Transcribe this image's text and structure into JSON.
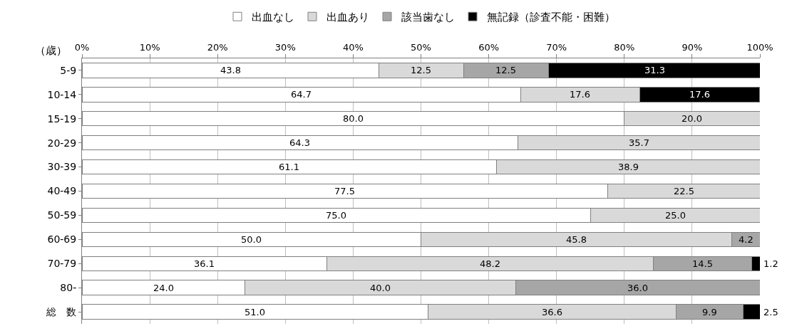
{
  "chart_data": {
    "type": "bar",
    "orientation": "horizontal",
    "stacked": true,
    "grid": "x",
    "legend": "top",
    "ylabel": "（歳）",
    "categories": [
      "5-9",
      "10-14",
      "15-19",
      "20-29",
      "30-39",
      "40-49",
      "50-59",
      "60-69",
      "70-79",
      "80-",
      "総　数"
    ],
    "series": [
      {
        "name": "出血なし",
        "color": "#ffffff",
        "values": [
          43.8,
          64.7,
          80.0,
          64.3,
          61.1,
          77.5,
          75.0,
          50.0,
          36.1,
          24.0,
          51.0
        ],
        "value_labels": [
          "43.8",
          "64.7",
          "80.0",
          "64.3",
          "61.1",
          "77.5",
          "75.0",
          "50.0",
          "36.1",
          "24.0",
          "51.0"
        ]
      },
      {
        "name": "出血あり",
        "color": "#d9d9d9",
        "values": [
          12.5,
          17.6,
          20.0,
          35.7,
          38.9,
          22.5,
          25.0,
          45.8,
          48.2,
          40.0,
          36.6
        ],
        "value_labels": [
          "12.5",
          "17.6",
          "20.0",
          "35.7",
          "38.9",
          "22.5",
          "25.0",
          "45.8",
          "48.2",
          "40.0",
          "36.6"
        ]
      },
      {
        "name": "該当歯なし",
        "color": "#a6a6a6",
        "values": [
          12.5,
          null,
          null,
          null,
          null,
          null,
          null,
          4.2,
          14.5,
          36.0,
          9.9
        ],
        "value_labels": [
          "12.5",
          null,
          null,
          null,
          null,
          null,
          null,
          "4.2",
          "14.5",
          "36.0",
          "9.9"
        ]
      },
      {
        "name": "無記録（診査不能・困難）",
        "color": "#000000",
        "values": [
          31.3,
          17.6,
          null,
          null,
          null,
          null,
          null,
          null,
          1.2,
          null,
          2.5
        ],
        "value_labels": [
          "31.3",
          "17.6",
          null,
          null,
          null,
          null,
          null,
          null,
          "1.2",
          null,
          "2.5"
        ]
      }
    ],
    "xlim": [
      0,
      100
    ],
    "xticks": [
      {
        "value": 0,
        "label": "0%"
      },
      {
        "value": 10,
        "label": "10%"
      },
      {
        "value": 20,
        "label": "20%"
      },
      {
        "value": 30,
        "label": "30%"
      },
      {
        "value": 40,
        "label": "40%"
      },
      {
        "value": 50,
        "label": "50%"
      },
      {
        "value": 60,
        "label": "60%"
      },
      {
        "value": 70,
        "label": "70%"
      },
      {
        "value": 80,
        "label": "80%"
      },
      {
        "value": 90,
        "label": "90%"
      },
      {
        "value": 100,
        "label": "100%"
      }
    ]
  }
}
